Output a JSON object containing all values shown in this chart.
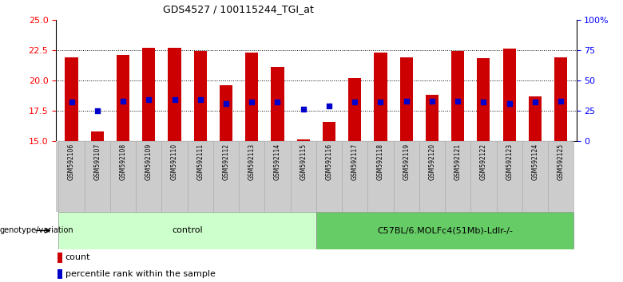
{
  "title": "GDS4527 / 100115244_TGI_at",
  "samples": [
    "GSM592106",
    "GSM592107",
    "GSM592108",
    "GSM592109",
    "GSM592110",
    "GSM592111",
    "GSM592112",
    "GSM592113",
    "GSM592114",
    "GSM592115",
    "GSM592116",
    "GSM592117",
    "GSM592118",
    "GSM592119",
    "GSM592120",
    "GSM592121",
    "GSM592122",
    "GSM592123",
    "GSM592124",
    "GSM592125"
  ],
  "count_values": [
    21.9,
    15.8,
    22.1,
    22.7,
    22.7,
    22.4,
    19.6,
    22.3,
    21.1,
    15.1,
    16.6,
    20.2,
    22.3,
    21.9,
    18.8,
    22.4,
    21.8,
    22.6,
    18.7,
    21.9
  ],
  "percentile_values": [
    18.2,
    17.5,
    18.3,
    18.4,
    18.4,
    18.4,
    18.1,
    18.2,
    18.2,
    17.6,
    17.9,
    18.2,
    18.2,
    18.3,
    18.3,
    18.3,
    18.2,
    18.1,
    18.2,
    18.3
  ],
  "ymin": 15,
  "ymax": 25,
  "yticks": [
    15,
    17.5,
    20,
    22.5,
    25
  ],
  "right_yticks": [
    0,
    25,
    50,
    75,
    100
  ],
  "right_yticklabels": [
    "0",
    "25",
    "50",
    "75",
    "100%"
  ],
  "bar_color": "#cc0000",
  "marker_color": "#0000cc",
  "bar_width": 0.5,
  "control_count": 10,
  "group1_label": "control",
  "group2_label": "C57BL/6.MOLFc4(51Mb)-Ldlr-/-",
  "group1_bg": "#ccffcc",
  "group2_bg": "#66cc66",
  "xlabel_area_bg": "#cccccc",
  "legend_count_label": "count",
  "legend_percentile_label": "percentile rank within the sample",
  "genotype_label": "genotype/variation"
}
